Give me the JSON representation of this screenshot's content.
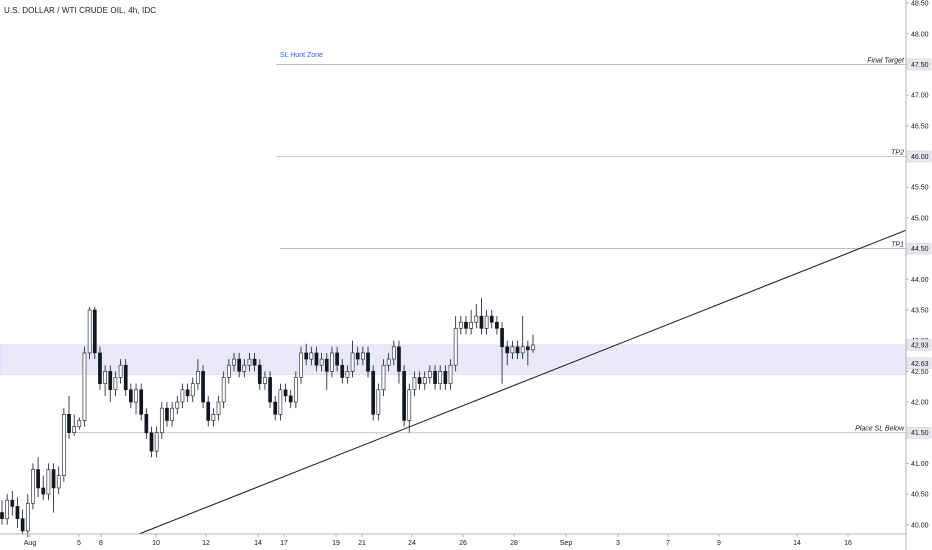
{
  "header": {
    "title": "U.S. DOLLAR / WTI CRUDE OIL, 4h, IDC"
  },
  "colors": {
    "bull": "#ffffff",
    "bear": "#131722",
    "wick": "#131722",
    "zone_fill": "#e9e9fb",
    "zone_border": "#c8c8ee",
    "level_line": "#b2b5be",
    "trendline": "#131722",
    "hunt_text": "#2962ff",
    "axis_line": "#b2b5be"
  },
  "chart_data": {
    "type": "candlestick",
    "title": "U.S. DOLLAR / WTI CRUDE OIL, 4h, IDC",
    "ylim": [
      39.85,
      48.55
    ],
    "y_ticks": [
      "40.00",
      "40.50",
      "41.00",
      "41.50",
      "42.00",
      "42.50",
      "43.00",
      "43.50",
      "44.00",
      "44.50",
      "45.00",
      "45.50",
      "46.00",
      "46.50",
      "47.00",
      "47.50",
      "48.00",
      "48.50"
    ],
    "x_ticks": [
      "Aug",
      "5",
      "8",
      "10",
      "12",
      "14",
      "17",
      "19",
      "21",
      "24",
      "26",
      "28",
      "Sep",
      "3",
      "7",
      "9",
      "14",
      "16"
    ],
    "levels": [
      {
        "label": "Final Target",
        "price": 47.5
      },
      {
        "label": "TP2",
        "price": 46.0
      },
      {
        "label": "TP1",
        "price": 44.5
      },
      {
        "label": "Place SL Below",
        "price": 41.5
      }
    ],
    "zone": {
      "label": "SL Hunt Zone",
      "from": 42.45,
      "to": 42.93
    },
    "price_labels": [
      "42.93",
      "42.63"
    ],
    "trendline": {
      "from": {
        "x": "Aug 10",
        "y": 39.85
      },
      "to": {
        "x": "Sep 16",
        "y": 44.8
      }
    },
    "candles": [
      [
        40.2,
        40.1,
        40.4,
        40.0
      ],
      [
        40.1,
        40.4,
        40.5,
        40.0
      ],
      [
        40.4,
        40.3,
        40.55,
        40.15
      ],
      [
        40.3,
        40.1,
        40.45,
        39.95
      ],
      [
        40.1,
        39.9,
        40.25,
        39.85
      ],
      [
        39.9,
        40.35,
        40.5,
        39.8
      ],
      [
        40.35,
        40.9,
        41.0,
        40.25
      ],
      [
        40.9,
        40.6,
        41.1,
        40.45
      ],
      [
        40.6,
        40.5,
        40.8,
        40.4
      ],
      [
        40.5,
        40.9,
        41.0,
        40.4
      ],
      [
        40.9,
        40.6,
        41.0,
        40.2
      ],
      [
        40.6,
        40.8,
        40.95,
        40.5
      ],
      [
        40.8,
        41.8,
        41.9,
        40.7
      ],
      [
        41.8,
        41.5,
        42.1,
        41.4
      ],
      [
        41.5,
        41.6,
        41.8,
        41.45
      ],
      [
        41.6,
        41.7,
        41.75,
        41.55
      ],
      [
        41.7,
        42.8,
        42.9,
        41.6
      ],
      [
        42.8,
        43.5,
        43.55,
        42.7
      ],
      [
        43.5,
        42.8,
        43.55,
        42.7
      ],
      [
        42.8,
        42.3,
        42.9,
        42.2
      ],
      [
        42.3,
        42.5,
        42.6,
        42.1
      ],
      [
        42.5,
        42.2,
        42.6,
        42.0
      ],
      [
        42.2,
        42.4,
        42.5,
        42.1
      ],
      [
        42.4,
        42.6,
        42.7,
        42.3
      ],
      [
        42.6,
        42.2,
        42.7,
        42.1
      ],
      [
        42.2,
        42.0,
        42.3,
        41.9
      ],
      [
        42.0,
        42.2,
        42.3,
        41.8
      ],
      [
        42.2,
        41.8,
        42.3,
        41.7
      ],
      [
        41.8,
        41.5,
        41.9,
        41.4
      ],
      [
        41.5,
        41.2,
        41.6,
        41.1
      ],
      [
        41.2,
        41.5,
        41.6,
        41.1
      ],
      [
        41.5,
        41.9,
        42.0,
        41.4
      ],
      [
        41.9,
        41.7,
        42.0,
        41.6
      ],
      [
        41.7,
        41.9,
        42.0,
        41.6
      ],
      [
        41.9,
        42.0,
        42.1,
        41.8
      ],
      [
        42.0,
        42.2,
        42.3,
        41.9
      ],
      [
        42.2,
        42.1,
        42.3,
        42.0
      ],
      [
        42.1,
        42.3,
        42.4,
        42.0
      ],
      [
        42.3,
        42.5,
        42.7,
        42.2
      ],
      [
        42.5,
        42.0,
        42.6,
        41.9
      ],
      [
        42.0,
        41.7,
        42.1,
        41.6
      ],
      [
        41.7,
        41.8,
        41.9,
        41.6
      ],
      [
        41.8,
        42.0,
        42.1,
        41.7
      ],
      [
        42.0,
        42.4,
        42.5,
        41.9
      ],
      [
        42.4,
        42.6,
        42.7,
        42.3
      ],
      [
        42.6,
        42.7,
        42.8,
        42.5
      ],
      [
        42.7,
        42.5,
        42.8,
        42.4
      ],
      [
        42.5,
        42.6,
        42.7,
        42.4
      ],
      [
        42.6,
        42.7,
        42.8,
        42.5
      ],
      [
        42.7,
        42.6,
        42.8,
        42.5
      ],
      [
        42.6,
        42.3,
        42.7,
        42.2
      ],
      [
        42.3,
        42.4,
        42.5,
        42.2
      ],
      [
        42.4,
        42.0,
        42.5,
        41.9
      ],
      [
        42.0,
        41.8,
        42.1,
        41.7
      ],
      [
        41.8,
        42.2,
        42.3,
        41.7
      ],
      [
        42.2,
        42.1,
        42.3,
        42.0
      ],
      [
        42.1,
        42.0,
        42.2,
        41.9
      ],
      [
        42.0,
        42.4,
        42.5,
        41.9
      ],
      [
        42.4,
        42.8,
        42.9,
        42.3
      ],
      [
        42.8,
        42.7,
        42.95,
        42.6
      ],
      [
        42.7,
        42.8,
        42.9,
        42.6
      ],
      [
        42.8,
        42.6,
        42.9,
        42.5
      ],
      [
        42.6,
        42.7,
        42.8,
        42.5
      ],
      [
        42.7,
        42.5,
        42.8,
        42.2
      ],
      [
        42.5,
        42.8,
        42.9,
        42.4
      ],
      [
        42.8,
        42.6,
        42.9,
        42.5
      ],
      [
        42.6,
        42.4,
        42.7,
        42.3
      ],
      [
        42.4,
        42.5,
        42.6,
        42.3
      ],
      [
        42.5,
        42.8,
        43.0,
        42.4
      ],
      [
        42.8,
        42.7,
        42.9,
        42.6
      ],
      [
        42.7,
        42.8,
        42.9,
        42.6
      ],
      [
        42.8,
        42.5,
        42.9,
        42.4
      ],
      [
        42.5,
        41.8,
        42.6,
        41.7
      ],
      [
        41.8,
        42.2,
        42.3,
        41.7
      ],
      [
        42.2,
        42.6,
        42.7,
        42.1
      ],
      [
        42.6,
        42.7,
        42.8,
        42.5
      ],
      [
        42.7,
        42.9,
        43.0,
        42.6
      ],
      [
        42.9,
        42.5,
        43.0,
        42.3
      ],
      [
        42.5,
        41.7,
        42.6,
        41.6
      ],
      [
        41.7,
        42.2,
        42.3,
        41.5
      ],
      [
        42.2,
        42.4,
        42.5,
        42.1
      ],
      [
        42.4,
        42.3,
        42.5,
        42.2
      ],
      [
        42.3,
        42.4,
        42.5,
        42.2
      ],
      [
        42.4,
        42.5,
        42.6,
        42.3
      ],
      [
        42.5,
        42.3,
        42.6,
        42.2
      ],
      [
        42.3,
        42.5,
        42.6,
        42.2
      ],
      [
        42.5,
        42.3,
        42.6,
        42.2
      ],
      [
        42.3,
        42.6,
        42.7,
        42.2
      ],
      [
        42.6,
        43.2,
        43.4,
        42.5
      ],
      [
        43.2,
        43.3,
        43.4,
        43.1
      ],
      [
        43.3,
        43.2,
        43.4,
        43.1
      ],
      [
        43.2,
        43.3,
        43.5,
        43.1
      ],
      [
        43.3,
        43.4,
        43.6,
        43.2
      ],
      [
        43.4,
        43.2,
        43.7,
        43.1
      ],
      [
        43.2,
        43.4,
        43.5,
        43.1
      ],
      [
        43.4,
        43.3,
        43.5,
        43.2
      ],
      [
        43.3,
        43.2,
        43.4,
        43.1
      ],
      [
        43.2,
        42.9,
        43.3,
        42.3
      ],
      [
        42.9,
        42.8,
        43.0,
        42.6
      ],
      [
        42.8,
        42.9,
        43.0,
        42.7
      ],
      [
        42.9,
        42.8,
        43.0,
        42.7
      ],
      [
        42.8,
        42.9,
        43.4,
        42.7
      ],
      [
        42.9,
        42.85,
        43.0,
        42.6
      ],
      [
        42.85,
        42.93,
        43.1,
        42.8
      ]
    ]
  }
}
